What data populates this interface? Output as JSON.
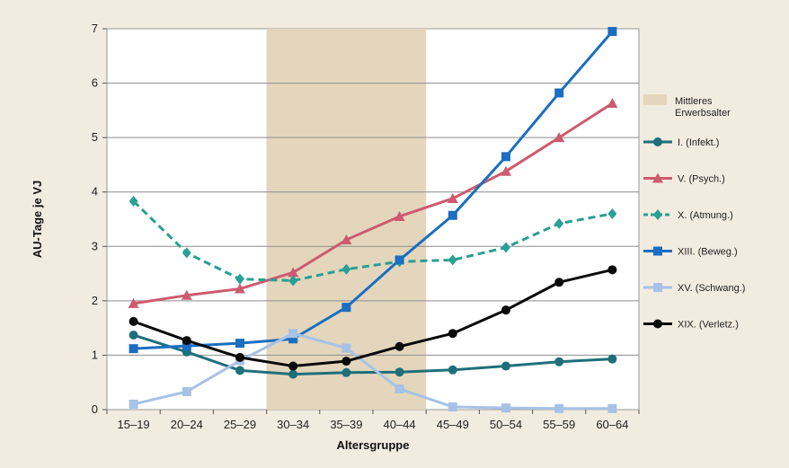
{
  "chart_data": {
    "type": "line",
    "xlabel": "Altersgruppe",
    "ylabel": "AU-Tage je VJ",
    "ylim": [
      0,
      7
    ],
    "yticks": [
      0,
      1,
      2,
      3,
      4,
      5,
      6,
      7
    ],
    "grid": true,
    "legend_position": "right",
    "categories": [
      "15–19",
      "20–24",
      "25–29",
      "30–34",
      "35–39",
      "40–44",
      "45–49",
      "50–54",
      "55–59",
      "60–64"
    ],
    "highlight_band": {
      "label": "Mittleres Erwerbsalter",
      "from": "30–34",
      "to": "40–44",
      "color": "#e3d6bc"
    },
    "series": [
      {
        "name": "I. (Infekt.)",
        "color": "#1f6f7a",
        "marker": "circle",
        "dash": false,
        "values": [
          1.37,
          1.06,
          0.72,
          0.65,
          0.68,
          0.69,
          0.73,
          0.8,
          0.88,
          0.93
        ]
      },
      {
        "name": "V. (Psych.)",
        "color": "#cd5a6e",
        "marker": "triangle",
        "dash": false,
        "values": [
          1.95,
          2.1,
          2.22,
          2.52,
          3.12,
          3.55,
          3.88,
          4.38,
          5.0,
          5.63
        ]
      },
      {
        "name": "X. (Atmung.)",
        "color": "#28a093",
        "marker": "diamond",
        "dash": true,
        "values": [
          3.83,
          2.88,
          2.4,
          2.37,
          2.58,
          2.72,
          2.75,
          2.98,
          3.42,
          3.6
        ]
      },
      {
        "name": "XIII. (Beweg.)",
        "color": "#1b6ec0",
        "marker": "square",
        "dash": false,
        "values": [
          1.12,
          1.17,
          1.22,
          1.3,
          1.88,
          2.75,
          3.57,
          4.65,
          5.82,
          6.95
        ]
      },
      {
        "name": "XV. (Schwang.)",
        "color": "#a6c2e6",
        "marker": "square",
        "dash": false,
        "values": [
          0.1,
          0.33,
          0.9,
          1.4,
          1.13,
          0.38,
          0.05,
          0.03,
          0.02,
          0.02
        ]
      },
      {
        "name": "XIX. (Verletz.)",
        "color": "#0a0a0a",
        "marker": "circle",
        "dash": false,
        "values": [
          1.62,
          1.27,
          0.96,
          0.8,
          0.89,
          1.16,
          1.4,
          1.83,
          2.34,
          2.57
        ]
      }
    ]
  }
}
